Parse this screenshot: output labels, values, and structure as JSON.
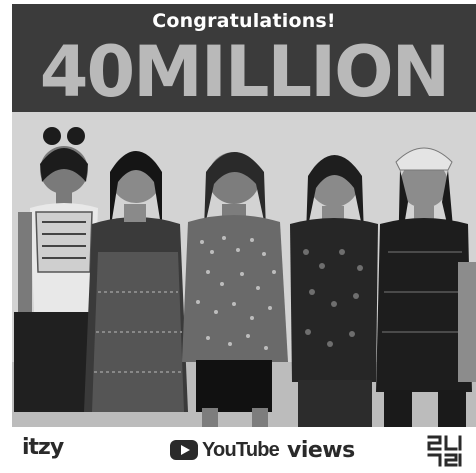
{
  "header": {
    "congrats": "Congratulations!",
    "milestone": "40MILLION"
  },
  "footer": {
    "group_logo": "itzy",
    "platform": "YouTube",
    "metric": "views"
  },
  "icons": {
    "play": "youtube-play-icon",
    "label": "jyp-label-logo"
  }
}
